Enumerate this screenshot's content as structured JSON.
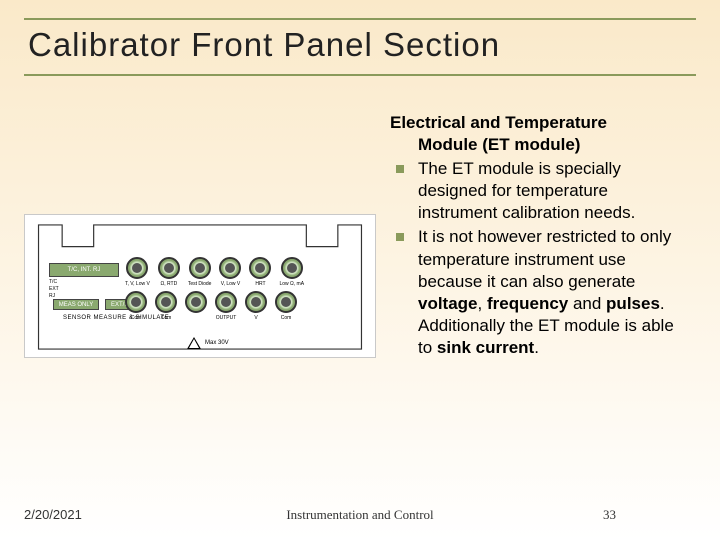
{
  "title": "Calibrator Front Panel Section",
  "heading": {
    "line1": "Electrical and Temperature",
    "line2": "Module (ET module)"
  },
  "bullets": [
    "The ET module is specially designed for temperature instrument calibration needs.",
    "It is not however restricted to only temperature instrument use because it can also generate <b>voltage</b>, <b>frequency</b> and <b>pulses</b>. Additionally the ET module is able to <b>sink current</b>."
  ],
  "footer": {
    "date": "2/20/2021",
    "course": "Instrumentation and Control",
    "page": "33"
  },
  "panel": {
    "greenbox1": "T/C, INT. RJ",
    "greenbox2": "MEAS ONLY",
    "greenbox3": "EXT/SIM",
    "sensor_label": "SENSOR MEASURE & SIMULATE",
    "connectors_top": [
      {
        "label": "T, V, Low V"
      },
      {
        "label": "Ω, RTD"
      },
      {
        "label": "Test Diode"
      },
      {
        "label": "V, Low V"
      },
      {
        "label": "HRT"
      },
      {
        "label": "Low Ω, mA"
      }
    ],
    "connectors_bottom": [
      {
        "label": "Com"
      },
      {
        "label": "Com"
      },
      {
        "label": ""
      },
      {
        "label": "OUTPUT"
      },
      {
        "label": "V"
      },
      {
        "label": "Com"
      }
    ],
    "left_labels": [
      "T/C",
      "EXT",
      "RJ"
    ],
    "warning_text": "Max 30V"
  },
  "colors": {
    "accent": "#8a9a5b",
    "green_panel": "#8aa96f",
    "bg_top": "#fae9c9",
    "bg_bottom": "#ffffff"
  }
}
